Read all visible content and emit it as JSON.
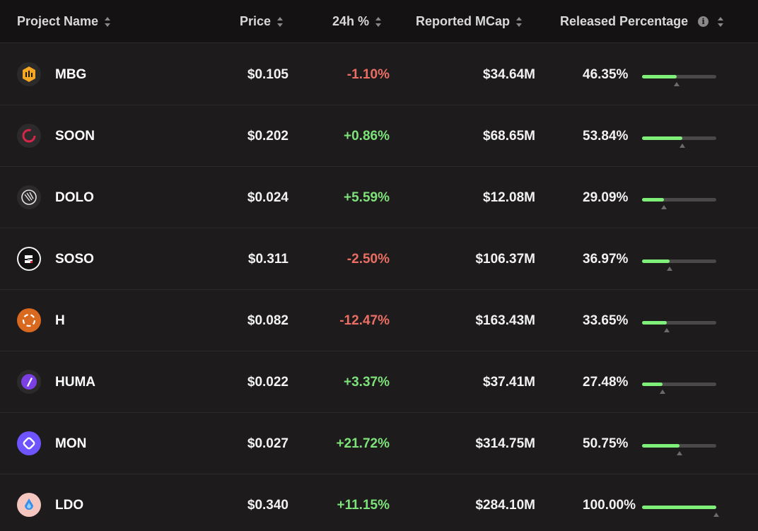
{
  "header": {
    "project_name": "Project Name",
    "price": "Price",
    "change_24h": "24h %",
    "reported_mcap": "Reported MCap",
    "released_percentage": "Released Percentage",
    "info_glyph": "i"
  },
  "colors": {
    "negative": "#ea6e63",
    "positive": "#7ee27a",
    "bar_fill": "#7ef07a"
  },
  "rows": [
    {
      "name": "MBG",
      "price": "$0.105",
      "change": "-1.10%",
      "mcap": "$34.64M",
      "released": "46.35%",
      "released_fraction": 0.4635,
      "icon": "mbg-logo-icon"
    },
    {
      "name": "SOON",
      "price": "$0.202",
      "change": "+0.86%",
      "mcap": "$68.65M",
      "released": "53.84%",
      "released_fraction": 0.5384,
      "icon": "soon-logo-icon"
    },
    {
      "name": "DOLO",
      "price": "$0.024",
      "change": "+5.59%",
      "mcap": "$12.08M",
      "released": "29.09%",
      "released_fraction": 0.2909,
      "icon": "dolo-logo-icon"
    },
    {
      "name": "SOSO",
      "price": "$0.311",
      "change": "-2.50%",
      "mcap": "$106.37M",
      "released": "36.97%",
      "released_fraction": 0.3697,
      "icon": "soso-logo-icon"
    },
    {
      "name": "H",
      "price": "$0.082",
      "change": "-12.47%",
      "mcap": "$163.43M",
      "released": "33.65%",
      "released_fraction": 0.3365,
      "icon": "h-logo-icon"
    },
    {
      "name": "HUMA",
      "price": "$0.022",
      "change": "+3.37%",
      "mcap": "$37.41M",
      "released": "27.48%",
      "released_fraction": 0.2748,
      "icon": "huma-logo-icon"
    },
    {
      "name": "MON",
      "price": "$0.027",
      "change": "+21.72%",
      "mcap": "$314.75M",
      "released": "50.75%",
      "released_fraction": 0.5075,
      "icon": "mon-logo-icon"
    },
    {
      "name": "LDO",
      "price": "$0.340",
      "change": "+11.15%",
      "mcap": "$284.10M",
      "released": "100.00%",
      "released_fraction": 1.0,
      "icon": "ldo-logo-icon"
    }
  ]
}
